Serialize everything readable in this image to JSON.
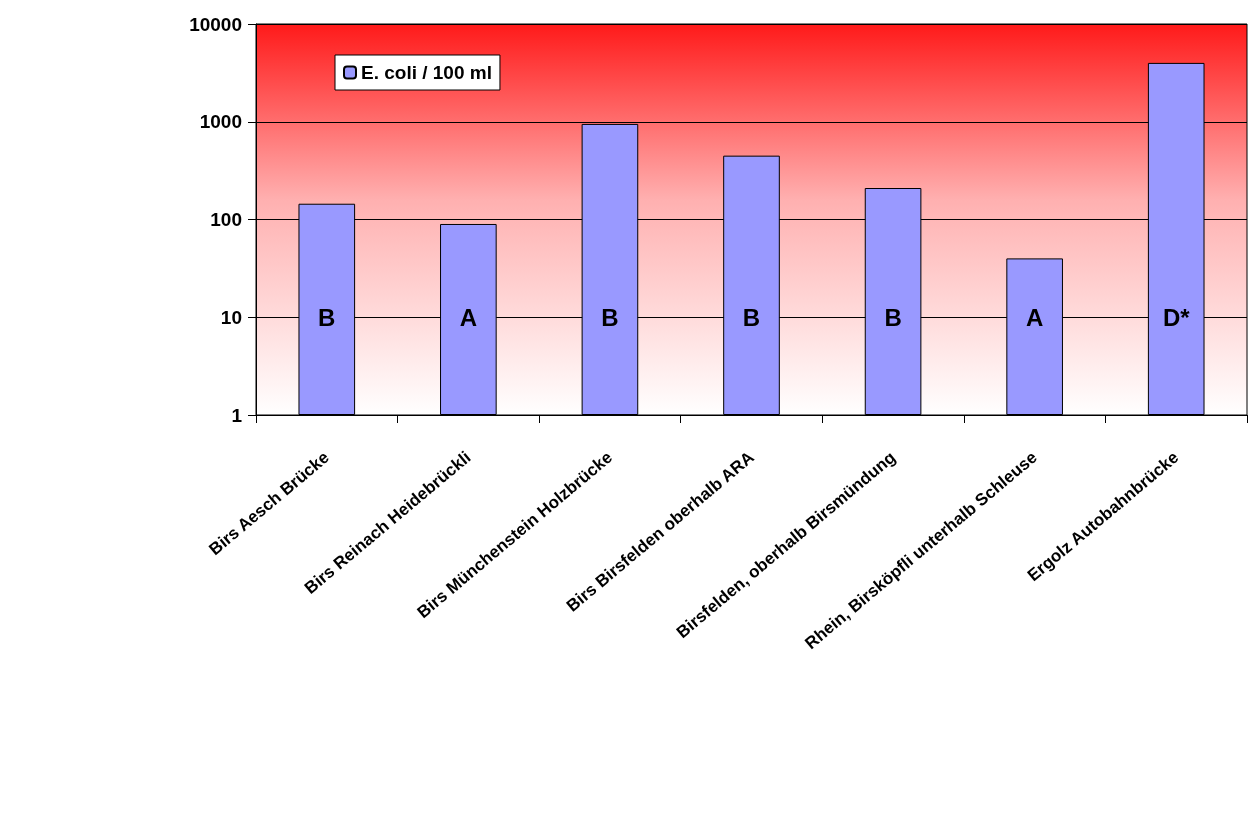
{
  "chart_data": {
    "type": "bar",
    "categories": [
      "Birs Aesch Brücke",
      "Birs Reinach Heidebrückli",
      "Birs Münchenstein Holzbrücke",
      "Birs Birsfelden oberhalb ARA",
      "Birsfelden, oberhalb Birsmündung",
      "Rhein, Birsköpfli unterhalb Schleuse",
      "Ergolz Autobahnbrücke"
    ],
    "series": [
      {
        "name": "E. coli / 100 ml",
        "color": "#9999ff",
        "values": [
          145,
          90,
          950,
          450,
          210,
          40,
          4000
        ]
      }
    ],
    "log": "y",
    "ylim": [
      1,
      10000
    ],
    "yticks": [
      1,
      10,
      100,
      1000,
      10000
    ],
    "grid": "y",
    "legend": "top left",
    "annotations": [
      "B",
      "A",
      "B",
      "B",
      "B",
      "A",
      "D*"
    ]
  }
}
